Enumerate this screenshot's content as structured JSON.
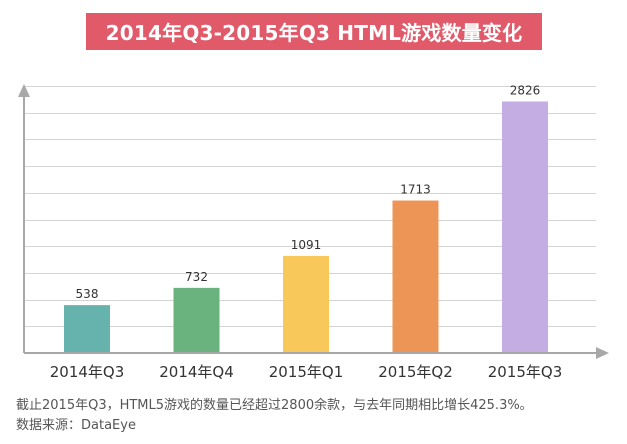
{
  "header": {
    "title": "2014年Q3-2015年Q3 HTML游戏数量变化"
  },
  "chart_data": {
    "type": "bar",
    "title": "2014年Q3-2015年Q3 HTML游戏数量变化",
    "categories": [
      "2014年Q3",
      "2014年Q4",
      "2015年Q1",
      "2015年Q2",
      "2015年Q3"
    ],
    "values": [
      538,
      732,
      1091,
      1713,
      2826
    ],
    "colors": [
      "#66b3ae",
      "#6bb37e",
      "#f9c85a",
      "#ec9557",
      "#c3ade3"
    ],
    "xlabel": "",
    "ylabel": "",
    "ylim": [
      0,
      3000
    ],
    "grid": true,
    "data_labels": true,
    "axis_color": "#a8a8a8",
    "grid_color": "#d4d4d4"
  },
  "footnote": {
    "line1": "截止2015年Q3，HTML5游戏的数量已经超过2800余款，与去年同期相比增长425.3%。",
    "line2": "数据来源：DataEye"
  }
}
